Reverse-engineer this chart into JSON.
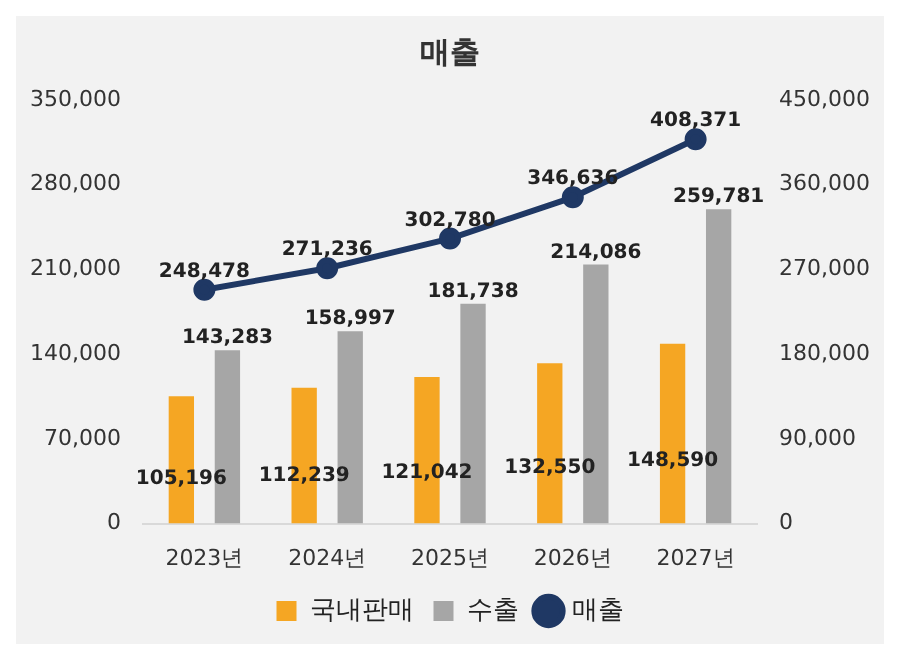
{
  "chart_data": {
    "type": "bar",
    "title": "매출",
    "categories": [
      "2023년",
      "2024년",
      "2025년",
      "2026년",
      "2027년"
    ],
    "series": [
      {
        "name": "국내판매",
        "color": "#f5a623",
        "values": [
          105196,
          112239,
          121042,
          132550,
          148590
        ],
        "value_labels": [
          "105,196",
          "112,239",
          "121,042",
          "132,550",
          "148,590"
        ]
      },
      {
        "name": "수출",
        "color": "#a6a6a6",
        "values": [
          143283,
          158997,
          181738,
          214086,
          259781
        ],
        "value_labels": [
          "143,283",
          "158,997",
          "181,738",
          "214,086",
          "259,781"
        ]
      },
      {
        "name": "매출",
        "type": "line",
        "axis": "y2",
        "color": "#1f3864",
        "values": [
          248478,
          271236,
          302780,
          346636,
          408371
        ],
        "value_labels": [
          "248,478",
          "271,236",
          "302,780",
          "346,636",
          "408,371"
        ]
      }
    ],
    "ylim": [
      0,
      350000
    ],
    "yticks": [
      {
        "value": 0,
        "label": "0"
      },
      {
        "value": 70000,
        "label": "70,000"
      },
      {
        "value": 140000,
        "label": "140,000"
      },
      {
        "value": 210000,
        "label": "210,000"
      },
      {
        "value": 280000,
        "label": "280,000"
      },
      {
        "value": 350000,
        "label": "350,000"
      }
    ],
    "y2lim": [
      0,
      450000
    ],
    "y2ticks": [
      {
        "value": 0,
        "label": "0"
      },
      {
        "value": 90000,
        "label": "90,000"
      },
      {
        "value": 180000,
        "label": "180,000"
      },
      {
        "value": 270000,
        "label": "270,000"
      },
      {
        "value": 360000,
        "label": "360,000"
      },
      {
        "value": 450000,
        "label": "450,000"
      }
    ],
    "grid": false,
    "legend": "bottom",
    "marker": "circle"
  }
}
